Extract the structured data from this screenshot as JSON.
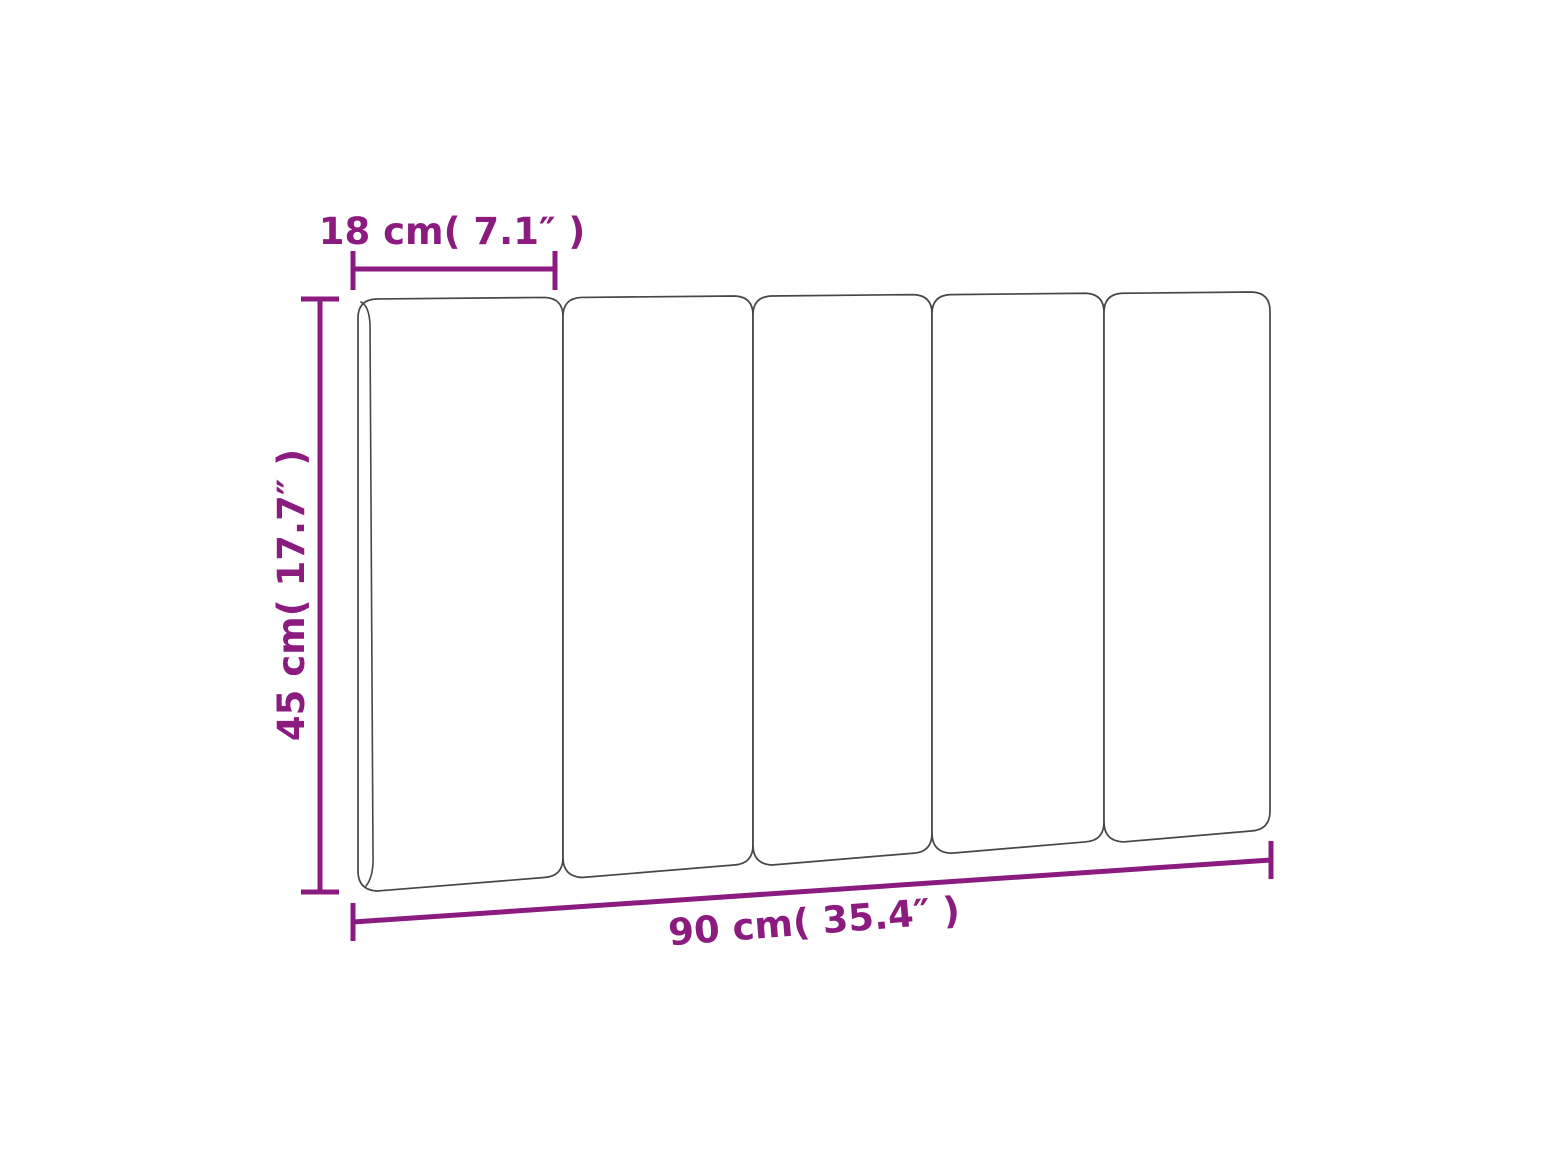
{
  "diagram": {
    "subject": "headboard-cushion-dimension-drawing",
    "panel_count": 5,
    "colors": {
      "background": "#ffffff",
      "outline": "#474747",
      "dimension": "#8c1b80"
    },
    "dimensions": {
      "panel_width": {
        "label": "18 cm( 7.1″ )",
        "cm": "18",
        "inches": "7.1"
      },
      "height": {
        "label": "45 cm( 17.7″ )",
        "cm": "45",
        "inches": "17.7"
      },
      "total_width": {
        "label": "90 cm( 35.4″ )",
        "cm": "90",
        "inches": "35.4"
      }
    }
  }
}
